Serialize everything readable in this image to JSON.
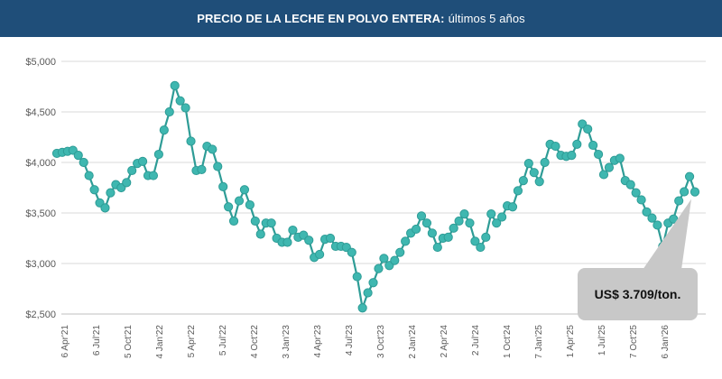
{
  "header": {
    "title_bold": "PRECIO DE LA LECHE EN POLVO ENTERA:",
    "title_rest": "últimos 5 años"
  },
  "colors": {
    "header_bg": "#1f4e79",
    "line": "#2e9c96",
    "marker_fill": "#3fb7b0",
    "grid": "#d9d9d9",
    "callout_bg": "#c8c8c8"
  },
  "callout": {
    "text": "US$ 3.709/ton."
  },
  "chart_data": {
    "type": "line",
    "title": "PRECIO DE LA LECHE EN POLVO ENTERA: últimos 5 años",
    "ylim": [
      2500,
      5000
    ],
    "yticks": [
      2500,
      3000,
      3500,
      4000,
      4500,
      5000
    ],
    "ytick_labels": [
      "$2,500",
      "$3,000",
      "$3,500",
      "$4,000",
      "$4,500",
      "$5,000"
    ],
    "xtick_labels": [
      "6 Apr'21",
      "6 Jul'21",
      "5 Oct'21",
      "4 Jan'22",
      "5 Apr'22",
      "5 Jul'22",
      "4 Oct'22",
      "3 Jan'23",
      "4 Apr'23",
      "4 Jul'23",
      "3 Oct'23",
      "2 Jan'24",
      "2 Apr'24",
      "2 Jul'24",
      "1 Oct'24",
      "7 Jan'25",
      "1 Apr'25",
      "1 Jul'25",
      "7 Oct'25",
      "6 Jan'26"
    ],
    "grid": true,
    "series": [
      {
        "values": [
          4090,
          4100,
          4110,
          4120,
          4070,
          4000,
          3870,
          3730,
          3600,
          3550,
          3700,
          3780,
          3750,
          3800,
          3920,
          3990,
          4010,
          3870,
          3870,
          4080,
          4320,
          4500,
          4760,
          4610,
          4540,
          4210,
          3920,
          3930,
          4160,
          4130,
          3960,
          3760,
          3560,
          3420,
          3620,
          3730,
          3580,
          3420,
          3290,
          3400,
          3400,
          3250,
          3210,
          3210,
          3330,
          3260,
          3280,
          3230,
          3060,
          3090,
          3240,
          3250,
          3170,
          3170,
          3160,
          3110,
          2870,
          2560,
          2710,
          2810,
          2950,
          3050,
          2980,
          3030,
          3110,
          3220,
          3300,
          3340,
          3470,
          3400,
          3300,
          3160,
          3250,
          3260,
          3350,
          3420,
          3490,
          3400,
          3220,
          3160,
          3260,
          3490,
          3400,
          3460,
          3570,
          3560,
          3720,
          3820,
          3990,
          3900,
          3810,
          4000,
          4180,
          4160,
          4070,
          4060,
          4070,
          4180,
          4380,
          4330,
          4170,
          4080,
          3880,
          3950,
          4020,
          4040,
          3820,
          3780,
          3700,
          3630,
          3510,
          3450,
          3380,
          3170,
          3400,
          3440,
          3620,
          3710,
          3860,
          3709
        ]
      }
    ]
  }
}
